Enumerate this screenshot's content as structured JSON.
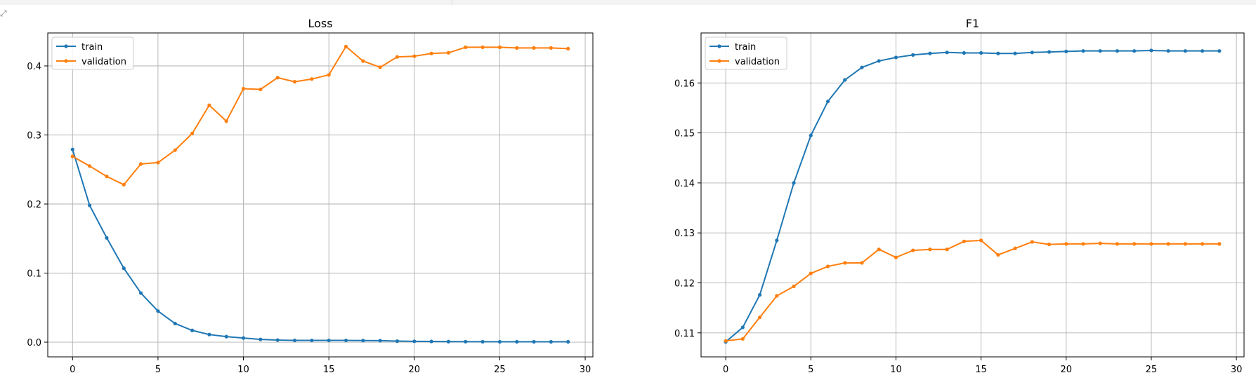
{
  "corner_icon": "expand-icon",
  "colors": {
    "train": "#1f77b4",
    "validation": "#ff7f0e",
    "grid": "#b0b0b0",
    "axis": "#000000"
  },
  "chart_data": [
    {
      "type": "line",
      "title": "Loss",
      "xlabel": "",
      "ylabel": "",
      "xlim": [
        -1.45,
        30.45
      ],
      "ylim": [
        -0.0213,
        0.4477
      ],
      "xticks": [
        0,
        5,
        10,
        15,
        20,
        25,
        30
      ],
      "yticks": [
        0.0,
        0.1,
        0.2,
        0.3,
        0.4
      ],
      "ytick_labels": [
        "0.0",
        "0.1",
        "0.2",
        "0.3",
        "0.4"
      ],
      "grid": true,
      "legend": "upper left",
      "x": [
        0,
        1,
        2,
        3,
        4,
        5,
        6,
        7,
        8,
        9,
        10,
        11,
        12,
        13,
        14,
        15,
        16,
        17,
        18,
        19,
        20,
        21,
        22,
        23,
        24,
        25,
        26,
        27,
        28,
        29
      ],
      "series": [
        {
          "name": "train",
          "values": [
            0.279,
            0.198,
            0.151,
            0.107,
            0.071,
            0.045,
            0.027,
            0.017,
            0.011,
            0.008,
            0.006,
            0.004,
            0.003,
            0.0025,
            0.0025,
            0.0025,
            0.0025,
            0.0023,
            0.0022,
            0.0015,
            0.0012,
            0.001,
            0.0008,
            0.0007,
            0.0006,
            0.0005,
            0.0005,
            0.0005,
            0.0005,
            0.0005
          ]
        },
        {
          "name": "validation",
          "values": [
            0.269,
            0.255,
            0.24,
            0.228,
            0.258,
            0.26,
            0.278,
            0.302,
            0.343,
            0.32,
            0.367,
            0.366,
            0.383,
            0.377,
            0.381,
            0.387,
            0.428,
            0.407,
            0.398,
            0.413,
            0.414,
            0.418,
            0.419,
            0.427,
            0.427,
            0.427,
            0.426,
            0.426,
            0.426,
            0.425
          ]
        }
      ]
    },
    {
      "type": "line",
      "title": "F1",
      "xlabel": "",
      "ylabel": "",
      "xlim": [
        -1.45,
        30.45
      ],
      "ylim": [
        0.1052,
        0.17
      ],
      "xticks": [
        0,
        5,
        10,
        15,
        20,
        25,
        30
      ],
      "yticks": [
        0.11,
        0.12,
        0.13,
        0.14,
        0.15,
        0.16
      ],
      "ytick_labels": [
        "0.11",
        "0.12",
        "0.13",
        "0.14",
        "0.15",
        "0.16"
      ],
      "grid": true,
      "legend": "upper left",
      "x": [
        0,
        1,
        2,
        3,
        4,
        5,
        6,
        7,
        8,
        9,
        10,
        11,
        12,
        13,
        14,
        15,
        16,
        17,
        18,
        19,
        20,
        21,
        22,
        23,
        24,
        25,
        26,
        27,
        28,
        29
      ],
      "series": [
        {
          "name": "train",
          "values": [
            0.1082,
            0.1111,
            0.1176,
            0.1285,
            0.14,
            0.1495,
            0.1563,
            0.1606,
            0.1631,
            0.1644,
            0.1651,
            0.1656,
            0.1659,
            0.1661,
            0.166,
            0.166,
            0.1659,
            0.1659,
            0.1661,
            0.1662,
            0.1663,
            0.1664,
            0.1664,
            0.1664,
            0.1664,
            0.1665,
            0.1664,
            0.1664,
            0.1664,
            0.1664
          ]
        },
        {
          "name": "validation",
          "values": [
            0.1084,
            0.1088,
            0.1131,
            0.1174,
            0.1193,
            0.1219,
            0.1233,
            0.124,
            0.124,
            0.1267,
            0.1251,
            0.1265,
            0.1267,
            0.1267,
            0.1283,
            0.1285,
            0.1256,
            0.1269,
            0.1282,
            0.1277,
            0.1278,
            0.1278,
            0.1279,
            0.1278,
            0.1278,
            0.1278,
            0.1278,
            0.1278,
            0.1278,
            0.1278
          ]
        }
      ]
    }
  ]
}
